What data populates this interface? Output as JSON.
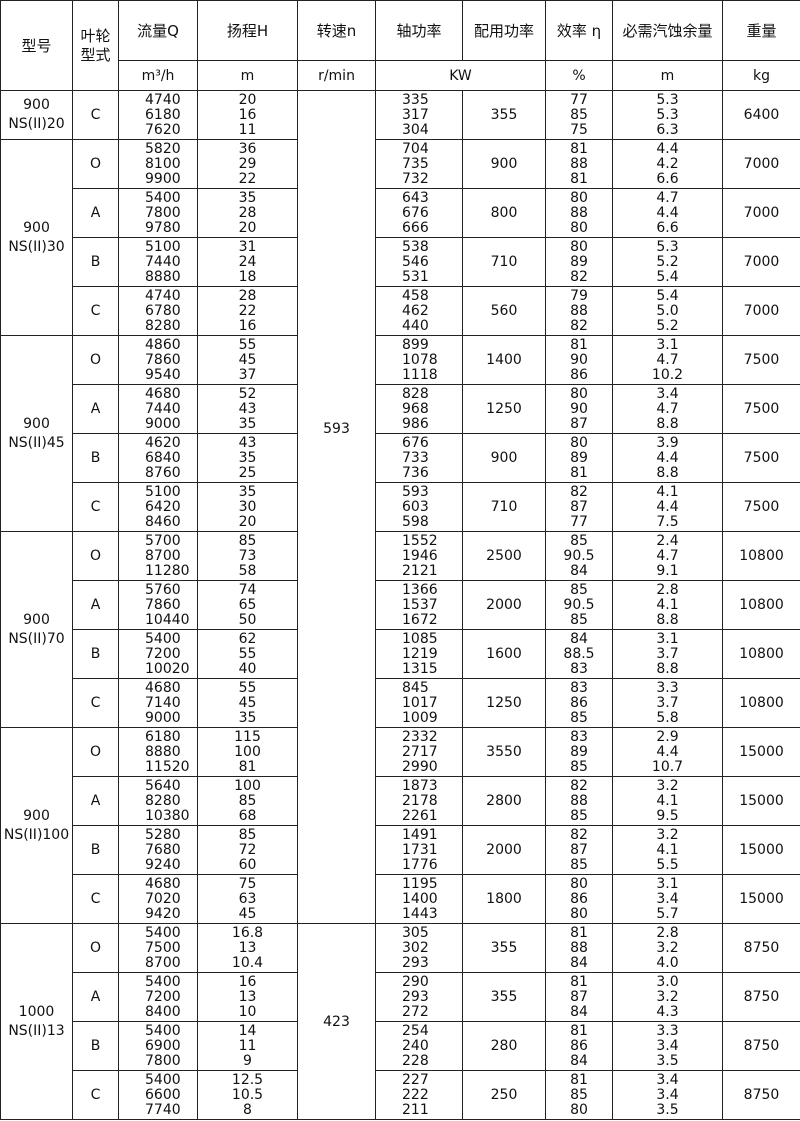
{
  "table": {
    "header": {
      "model": "型号",
      "impeller": [
        "叶轮",
        "型式"
      ],
      "columns": [
        "流量Q",
        "扬程H",
        "转速n",
        "轴功率",
        "配用功率",
        "效率 η",
        "必需汽蚀余量",
        "重量"
      ]
    },
    "units": [
      "m³/h",
      "m",
      "r/min",
      "KW",
      "%",
      "m",
      "kg"
    ],
    "models": [
      {
        "name": [
          "900",
          "NS(II)20"
        ],
        "speed": "593",
        "groups": [
          {
            "impeller": "C",
            "rows": [
              [
                "4740",
                "20",
                "335",
                "77",
                "5.3"
              ],
              [
                "6180",
                "16",
                "317",
                "85",
                "5.3"
              ],
              [
                "7620",
                "11",
                "304",
                "75",
                "6.3"
              ]
            ],
            "power": "355",
            "weight": "6400"
          }
        ]
      },
      {
        "name": [
          "900",
          "NS(II)30"
        ],
        "groups": [
          {
            "impeller": "O",
            "rows": [
              [
                "5820",
                "36",
                "704",
                "81",
                "4.4"
              ],
              [
                "8100",
                "29",
                "735",
                "88",
                "4.2"
              ],
              [
                "9900",
                "22",
                "732",
                "81",
                "6.6"
              ]
            ],
            "power": "900",
            "weight": "7000"
          },
          {
            "impeller": "A",
            "rows": [
              [
                "5400",
                "35",
                "643",
                "80",
                "4.7"
              ],
              [
                "7800",
                "28",
                "676",
                "88",
                "4.4"
              ],
              [
                "9780",
                "20",
                "666",
                "80",
                "6.6"
              ]
            ],
            "power": "800",
            "weight": "7000"
          },
          {
            "impeller": "B",
            "rows": [
              [
                "5100",
                "31",
                "538",
                "80",
                "5.3"
              ],
              [
                "7440",
                "24",
                "546",
                "89",
                "5.2"
              ],
              [
                "8880",
                "18",
                "531",
                "82",
                "5.4"
              ]
            ],
            "power": "710",
            "weight": "7000"
          },
          {
            "impeller": "C",
            "rows": [
              [
                "4740",
                "28",
                "458",
                "79",
                "5.4"
              ],
              [
                "6780",
                "22",
                "462",
                "88",
                "5.0"
              ],
              [
                "8280",
                "16",
                "440",
                "82",
                "5.2"
              ]
            ],
            "power": "560",
            "weight": "7000"
          }
        ]
      },
      {
        "name": [
          "900",
          "NS(II)45"
        ],
        "groups": [
          {
            "impeller": "O",
            "rows": [
              [
                "4860",
                "55",
                "899",
                "81",
                "3.1"
              ],
              [
                "7860",
                "45",
                "1078",
                "90",
                "4.7"
              ],
              [
                "9540",
                "37",
                "1118",
                "86",
                "10.2"
              ]
            ],
            "power": "1400",
            "weight": "7500"
          },
          {
            "impeller": "A",
            "rows": [
              [
                "4680",
                "52",
                "828",
                "80",
                "3.4"
              ],
              [
                "7440",
                "43",
                "968",
                "90",
                "4.7"
              ],
              [
                "9000",
                "35",
                "986",
                "87",
                "8.8"
              ]
            ],
            "power": "1250",
            "weight": "7500"
          },
          {
            "impeller": "B",
            "rows": [
              [
                "4620",
                "43",
                "676",
                "80",
                "3.9"
              ],
              [
                "6840",
                "35",
                "733",
                "89",
                "4.4"
              ],
              [
                "8760",
                "25",
                "736",
                "81",
                "8.8"
              ]
            ],
            "power": "900",
            "weight": "7500"
          },
          {
            "impeller": "C",
            "rows": [
              [
                "5100",
                "35",
                "593",
                "82",
                "4.1"
              ],
              [
                "6420",
                "30",
                "603",
                "87",
                "4.4"
              ],
              [
                "8460",
                "20",
                "598",
                "77",
                "7.5"
              ]
            ],
            "power": "710",
            "weight": "7500"
          }
        ]
      },
      {
        "name": [
          "900",
          "NS(II)70"
        ],
        "groups": [
          {
            "impeller": "O",
            "rows": [
              [
                "5700",
                "85",
                "1552",
                "85",
                "2.4"
              ],
              [
                "8700",
                "73",
                "1946",
                "90.5",
                "4.7"
              ],
              [
                "11280",
                "58",
                "2121",
                "84",
                "9.1"
              ]
            ],
            "power": "2500",
            "weight": "10800"
          },
          {
            "impeller": "A",
            "rows": [
              [
                "5760",
                "74",
                "1366",
                "85",
                "2.8"
              ],
              [
                "7860",
                "65",
                "1537",
                "90.5",
                "4.1"
              ],
              [
                "10440",
                "50",
                "1672",
                "85",
                "8.8"
              ]
            ],
            "power": "2000",
            "weight": "10800"
          },
          {
            "impeller": "B",
            "rows": [
              [
                "5400",
                "62",
                "1085",
                "84",
                "3.1"
              ],
              [
                "7200",
                "55",
                "1219",
                "88.5",
                "3.7"
              ],
              [
                "10020",
                "40",
                "1315",
                "83",
                "8.8"
              ]
            ],
            "power": "1600",
            "weight": "10800"
          },
          {
            "impeller": "C",
            "rows": [
              [
                "4680",
                "55",
                "845",
                "83",
                "3.3"
              ],
              [
                "7140",
                "45",
                "1017",
                "86",
                "3.7"
              ],
              [
                "9000",
                "35",
                "1009",
                "85",
                "5.8"
              ]
            ],
            "power": "1250",
            "weight": "10800"
          }
        ]
      },
      {
        "name": [
          "900",
          "NS(II)100"
        ],
        "groups": [
          {
            "impeller": "O",
            "rows": [
              [
                "6180",
                "115",
                "2332",
                "83",
                "2.9"
              ],
              [
                "8880",
                "100",
                "2717",
                "89",
                "4.4"
              ],
              [
                "11520",
                "81",
                "2990",
                "85",
                "10.7"
              ]
            ],
            "power": "3550",
            "weight": "15000"
          },
          {
            "impeller": "A",
            "rows": [
              [
                "5640",
                "100",
                "1873",
                "82",
                "3.2"
              ],
              [
                "8280",
                "85",
                "2178",
                "88",
                "4.1"
              ],
              [
                "10380",
                "68",
                "2261",
                "85",
                "9.5"
              ]
            ],
            "power": "2800",
            "weight": "15000"
          },
          {
            "impeller": "B",
            "rows": [
              [
                "5280",
                "85",
                "1491",
                "82",
                "3.2"
              ],
              [
                "7680",
                "72",
                "1731",
                "87",
                "4.1"
              ],
              [
                "9240",
                "60",
                "1776",
                "85",
                "5.5"
              ]
            ],
            "power": "2000",
            "weight": "15000"
          },
          {
            "impeller": "C",
            "rows": [
              [
                "4680",
                "75",
                "1195",
                "80",
                "3.1"
              ],
              [
                "7020",
                "63",
                "1400",
                "86",
                "3.4"
              ],
              [
                "9420",
                "45",
                "1443",
                "80",
                "5.7"
              ]
            ],
            "power": "1800",
            "weight": "15000"
          }
        ]
      },
      {
        "name": [
          "1000",
          "NS(II)13"
        ],
        "speed": "423",
        "groups": [
          {
            "impeller": "O",
            "rows": [
              [
                "5400",
                "16.8",
                "305",
                "81",
                "2.8"
              ],
              [
                "7500",
                "13",
                "302",
                "88",
                "3.2"
              ],
              [
                "8700",
                "10.4",
                "293",
                "84",
                "4.0"
              ]
            ],
            "power": "355",
            "weight": "8750"
          },
          {
            "impeller": "A",
            "rows": [
              [
                "5400",
                "16",
                "290",
                "81",
                "3.0"
              ],
              [
                "7200",
                "13",
                "293",
                "87",
                "3.2"
              ],
              [
                "8400",
                "10",
                "272",
                "84",
                "4.3"
              ]
            ],
            "power": "355",
            "weight": "8750"
          },
          {
            "impeller": "B",
            "rows": [
              [
                "5400",
                "14",
                "254",
                "81",
                "3.3"
              ],
              [
                "6900",
                "11",
                "240",
                "86",
                "3.4"
              ],
              [
                "7800",
                "9",
                "228",
                "84",
                "3.5"
              ]
            ],
            "power": "280",
            "weight": "8750"
          },
          {
            "impeller": "C",
            "rows": [
              [
                "5400",
                "12.5",
                "227",
                "81",
                "3.4"
              ],
              [
                "6600",
                "10.5",
                "222",
                "85",
                "3.4"
              ],
              [
                "7740",
                "8",
                "211",
                "80",
                "3.5"
              ]
            ],
            "power": "250",
            "weight": "8750"
          }
        ]
      }
    ]
  }
}
